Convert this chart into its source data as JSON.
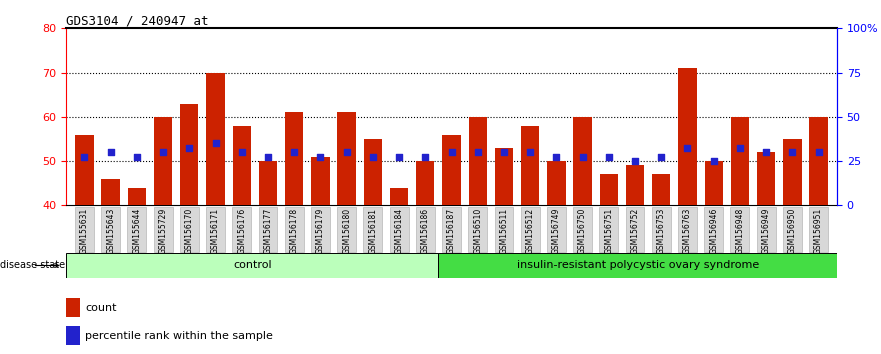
{
  "title": "GDS3104 / 240947_at",
  "samples": [
    "GSM155631",
    "GSM155643",
    "GSM155644",
    "GSM155729",
    "GSM156170",
    "GSM156171",
    "GSM156176",
    "GSM156177",
    "GSM156178",
    "GSM156179",
    "GSM156180",
    "GSM156181",
    "GSM156184",
    "GSM156186",
    "GSM156187",
    "GSM156510",
    "GSM156511",
    "GSM156512",
    "GSM156749",
    "GSM156750",
    "GSM156751",
    "GSM156752",
    "GSM156753",
    "GSM156763",
    "GSM156946",
    "GSM156948",
    "GSM156949",
    "GSM156950",
    "GSM156951"
  ],
  "counts": [
    56,
    46,
    44,
    60,
    63,
    70,
    58,
    50,
    61,
    51,
    61,
    55,
    44,
    50,
    56,
    60,
    53,
    58,
    50,
    60,
    47,
    49,
    47,
    71,
    50,
    60,
    52,
    55,
    60
  ],
  "percentile_ranks": [
    51,
    52,
    51,
    52,
    53,
    54,
    52,
    51,
    52,
    51,
    52,
    51,
    51,
    51,
    52,
    52,
    52,
    52,
    51,
    51,
    51,
    50,
    51,
    53,
    50,
    53,
    52,
    52,
    52
  ],
  "control_count": 14,
  "disease_count": 15,
  "ylim_left": [
    40,
    80
  ],
  "ylim_right": [
    0,
    100
  ],
  "bar_color": "#cc2200",
  "dot_color": "#2222cc",
  "control_color": "#bbffbb",
  "disease_color": "#44dd44",
  "control_label": "control",
  "disease_label": "insulin-resistant polycystic ovary syndrome",
  "disease_state_label": "disease state",
  "legend_count": "count",
  "legend_percentile": "percentile rank within the sample",
  "yticks_left": [
    40,
    50,
    60,
    70,
    80
  ],
  "yticks_right": [
    0,
    25,
    50,
    75,
    100
  ],
  "ytick_labels_right": [
    "0",
    "25",
    "50",
    "75",
    "100%"
  ],
  "bg_color": "#ffffff",
  "xtick_bg": "#d8d8d8"
}
